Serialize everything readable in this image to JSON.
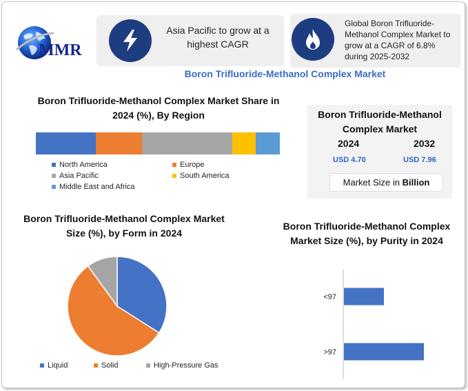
{
  "logo": {
    "text": "MMR"
  },
  "highlights": {
    "region_note": "Asia Pacific to grow at a highest CAGR",
    "cagr_note": "Global Boron Trifluoride-Methanol Complex Market to grow at a CAGR of 6.8% during 2025-2032",
    "icons": [
      "lightning-icon",
      "flame-icon"
    ],
    "icon_color": "#1e3d80"
  },
  "main_title": "Boron Trifluoride-Methanol Complex Market",
  "summary": {
    "title": "Boron Trifluoride-Methanol Complex Market",
    "year_start": "2024",
    "year_end": "2032",
    "value_start": "USD 4.70",
    "value_end": "USD 7.96",
    "footer_prefix": "Market Size in ",
    "footer_bold": "Billion"
  },
  "chart_data": [
    {
      "type": "bar",
      "orientation": "horizontal-stacked",
      "title": "Boron Trifluoride-Methanol Complex Market Share in 2024 (%), By Region",
      "xlim": [
        0,
        100
      ],
      "grid": false,
      "legend_position": "bottom",
      "series": [
        {
          "name": "North America",
          "value": 24.5,
          "color": "#4472c4"
        },
        {
          "name": "Europe",
          "value": 19,
          "color": "#ed7d31"
        },
        {
          "name": "Asia Pacific",
          "value": 37,
          "color": "#a5a5a5"
        },
        {
          "name": "South America",
          "value": 9.5,
          "color": "#ffc000"
        },
        {
          "name": "Middle East and Africa",
          "value": 10,
          "color": "#5b9bd5"
        }
      ]
    },
    {
      "type": "pie",
      "title": "Boron Trifluoride-Methanol Complex Market Size (%), by Form in 2024",
      "legend_position": "bottom",
      "slices": [
        {
          "name": "Liquid",
          "value": 34,
          "color": "#4472c4"
        },
        {
          "name": "Solid",
          "value": 56,
          "color": "#ed7d31"
        },
        {
          "name": "High-Pressure Gas",
          "value": 10,
          "color": "#a5a5a5"
        }
      ]
    },
    {
      "type": "bar",
      "orientation": "horizontal",
      "title": "Boron Trifluoride-Methanol Complex Market Size (%), by Purity in 2024",
      "categories": [
        "<97",
        ">97"
      ],
      "values": [
        50,
        100
      ],
      "xlim": [
        0,
        100
      ],
      "grid": false,
      "color": "#4472c4"
    }
  ]
}
